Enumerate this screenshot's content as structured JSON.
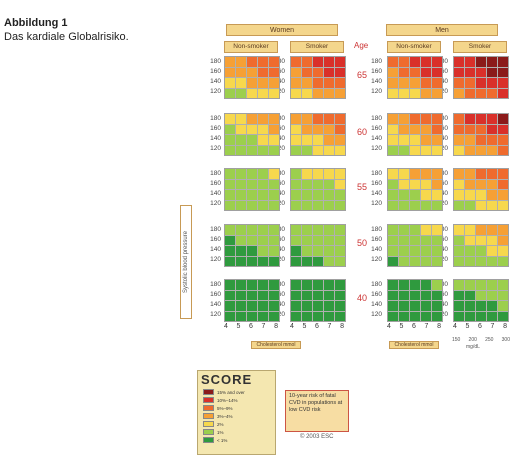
{
  "caption": {
    "title": "Abbildung 1",
    "text": "Das kardiale Globalrisiko."
  },
  "chart": {
    "sex_labels": [
      "Women",
      "Men"
    ],
    "smoker_labels": [
      "Non-smoker",
      "Smoker",
      "Non-smoker",
      "Smoker"
    ],
    "age_header": "Age",
    "ages": [
      "65",
      "60",
      "55",
      "50",
      "40"
    ],
    "sbp_ticks": [
      "180",
      "160",
      "140",
      "120"
    ],
    "chol_ticks": [
      "4",
      "5",
      "6",
      "7",
      "8"
    ],
    "chol_label": "Cholesterol mmol",
    "yaxis_label": "Systolic blood pressure",
    "mmol_ticks": [
      "150",
      "200",
      "250",
      "300"
    ],
    "mmol_unit": "mg/dL",
    "colors": {
      "15plus": "#8b1a1a",
      "10-14": "#d9302a",
      "5-9": "#ef6b2e",
      "3-4": "#f6a035",
      "2": "#f7d84d",
      "1": "#9ccf4d",
      "lt1": "#2f9a3e"
    },
    "grids": [
      [
        [
          [
            "3-4",
            "3-4",
            "5-9",
            "5-9",
            "5-9"
          ],
          [
            "3-4",
            "3-4",
            "3-4",
            "5-9",
            "5-9"
          ],
          [
            "2",
            "2",
            "3-4",
            "3-4",
            "3-4"
          ],
          [
            "1",
            "1",
            "2",
            "2",
            "2"
          ]
        ],
        [
          [
            "5-9",
            "5-9",
            "10-14",
            "10-14",
            "10-14"
          ],
          [
            "3-4",
            "5-9",
            "5-9",
            "10-14",
            "10-14"
          ],
          [
            "3-4",
            "3-4",
            "5-9",
            "5-9",
            "5-9"
          ],
          [
            "2",
            "2",
            "3-4",
            "3-4",
            "3-4"
          ]
        ],
        [
          [
            "5-9",
            "5-9",
            "10-14",
            "10-14",
            "10-14"
          ],
          [
            "3-4",
            "5-9",
            "5-9",
            "10-14",
            "10-14"
          ],
          [
            "3-4",
            "3-4",
            "3-4",
            "5-9",
            "5-9"
          ],
          [
            "2",
            "2",
            "2",
            "3-4",
            "3-4"
          ]
        ],
        [
          [
            "10-14",
            "10-14",
            "15plus",
            "15plus",
            "15plus"
          ],
          [
            "10-14",
            "10-14",
            "10-14",
            "15plus",
            "15plus"
          ],
          [
            "5-9",
            "5-9",
            "10-14",
            "10-14",
            "10-14"
          ],
          [
            "3-4",
            "5-9",
            "5-9",
            "5-9",
            "10-14"
          ]
        ]
      ],
      [
        [
          [
            "2",
            "2",
            "3-4",
            "3-4",
            "3-4"
          ],
          [
            "1",
            "2",
            "2",
            "2",
            "3-4"
          ],
          [
            "1",
            "1",
            "1",
            "2",
            "2"
          ],
          [
            "1",
            "1",
            "1",
            "1",
            "1"
          ]
        ],
        [
          [
            "3-4",
            "3-4",
            "5-9",
            "5-9",
            "5-9"
          ],
          [
            "2",
            "3-4",
            "3-4",
            "3-4",
            "5-9"
          ],
          [
            "2",
            "2",
            "2",
            "3-4",
            "3-4"
          ],
          [
            "1",
            "1",
            "2",
            "2",
            "2"
          ]
        ],
        [
          [
            "3-4",
            "3-4",
            "5-9",
            "5-9",
            "5-9"
          ],
          [
            "2",
            "3-4",
            "3-4",
            "3-4",
            "5-9"
          ],
          [
            "2",
            "2",
            "2",
            "3-4",
            "3-4"
          ],
          [
            "1",
            "1",
            "2",
            "2",
            "2"
          ]
        ],
        [
          [
            "5-9",
            "10-14",
            "10-14",
            "10-14",
            "15plus"
          ],
          [
            "5-9",
            "5-9",
            "5-9",
            "10-14",
            "10-14"
          ],
          [
            "3-4",
            "3-4",
            "5-9",
            "5-9",
            "5-9"
          ],
          [
            "2",
            "3-4",
            "3-4",
            "3-4",
            "5-9"
          ]
        ]
      ],
      [
        [
          [
            "1",
            "1",
            "1",
            "1",
            "2"
          ],
          [
            "1",
            "1",
            "1",
            "1",
            "1"
          ],
          [
            "1",
            "1",
            "1",
            "1",
            "1"
          ],
          [
            "1",
            "1",
            "1",
            "1",
            "1"
          ]
        ],
        [
          [
            "1",
            "2",
            "2",
            "2",
            "2"
          ],
          [
            "1",
            "1",
            "1",
            "1",
            "2"
          ],
          [
            "1",
            "1",
            "1",
            "1",
            "1"
          ],
          [
            "1",
            "1",
            "1",
            "1",
            "1"
          ]
        ],
        [
          [
            "2",
            "2",
            "3-4",
            "3-4",
            "3-4"
          ],
          [
            "1",
            "2",
            "2",
            "2",
            "3-4"
          ],
          [
            "1",
            "1",
            "1",
            "2",
            "2"
          ],
          [
            "1",
            "1",
            "1",
            "1",
            "1"
          ]
        ],
        [
          [
            "3-4",
            "3-4",
            "5-9",
            "5-9",
            "5-9"
          ],
          [
            "2",
            "3-4",
            "3-4",
            "3-4",
            "5-9"
          ],
          [
            "2",
            "2",
            "2",
            "3-4",
            "3-4"
          ],
          [
            "1",
            "1",
            "2",
            "2",
            "2"
          ]
        ]
      ],
      [
        [
          [
            "1",
            "1",
            "1",
            "1",
            "1"
          ],
          [
            "lt1",
            "1",
            "1",
            "1",
            "1"
          ],
          [
            "lt1",
            "lt1",
            "lt1",
            "1",
            "1"
          ],
          [
            "lt1",
            "lt1",
            "lt1",
            "lt1",
            "lt1"
          ]
        ],
        [
          [
            "1",
            "1",
            "1",
            "1",
            "1"
          ],
          [
            "1",
            "1",
            "1",
            "1",
            "1"
          ],
          [
            "lt1",
            "1",
            "1",
            "1",
            "1"
          ],
          [
            "lt1",
            "lt1",
            "lt1",
            "1",
            "1"
          ]
        ],
        [
          [
            "1",
            "1",
            "1",
            "2",
            "2"
          ],
          [
            "1",
            "1",
            "1",
            "1",
            "1"
          ],
          [
            "1",
            "1",
            "1",
            "1",
            "1"
          ],
          [
            "lt1",
            "1",
            "1",
            "1",
            "1"
          ]
        ],
        [
          [
            "2",
            "2",
            "3-4",
            "3-4",
            "3-4"
          ],
          [
            "1",
            "2",
            "2",
            "2",
            "3-4"
          ],
          [
            "1",
            "1",
            "1",
            "2",
            "2"
          ],
          [
            "1",
            "1",
            "1",
            "1",
            "1"
          ]
        ]
      ],
      [
        [
          [
            "lt1",
            "lt1",
            "lt1",
            "lt1",
            "lt1"
          ],
          [
            "lt1",
            "lt1",
            "lt1",
            "lt1",
            "lt1"
          ],
          [
            "lt1",
            "lt1",
            "lt1",
            "lt1",
            "lt1"
          ],
          [
            "lt1",
            "lt1",
            "lt1",
            "lt1",
            "lt1"
          ]
        ],
        [
          [
            "lt1",
            "lt1",
            "lt1",
            "lt1",
            "lt1"
          ],
          [
            "lt1",
            "lt1",
            "lt1",
            "lt1",
            "lt1"
          ],
          [
            "lt1",
            "lt1",
            "lt1",
            "lt1",
            "lt1"
          ],
          [
            "lt1",
            "lt1",
            "lt1",
            "lt1",
            "lt1"
          ]
        ],
        [
          [
            "lt1",
            "lt1",
            "lt1",
            "lt1",
            "1"
          ],
          [
            "lt1",
            "lt1",
            "lt1",
            "lt1",
            "lt1"
          ],
          [
            "lt1",
            "lt1",
            "lt1",
            "lt1",
            "lt1"
          ],
          [
            "lt1",
            "lt1",
            "lt1",
            "lt1",
            "lt1"
          ]
        ],
        [
          [
            "1",
            "1",
            "1",
            "1",
            "1"
          ],
          [
            "lt1",
            "lt1",
            "1",
            "1",
            "1"
          ],
          [
            "lt1",
            "lt1",
            "lt1",
            "lt1",
            "1"
          ],
          [
            "lt1",
            "lt1",
            "lt1",
            "lt1",
            "lt1"
          ]
        ]
      ]
    ]
  },
  "score": {
    "logo": "SCORE",
    "legend": [
      {
        "key": "15plus",
        "label": "15% and over"
      },
      {
        "key": "10-14",
        "label": "10%–14%"
      },
      {
        "key": "5-9",
        "label": "5%–9%"
      },
      {
        "key": "3-4",
        "label": "3%–4%"
      },
      {
        "key": "2",
        "label": "2%"
      },
      {
        "key": "1",
        "label": "1%"
      },
      {
        "key": "lt1",
        "label": "< 1%"
      }
    ],
    "note": "10-year risk of fatal CVD in populations at low CVD risk",
    "copyright": "© 2003 ESC"
  }
}
